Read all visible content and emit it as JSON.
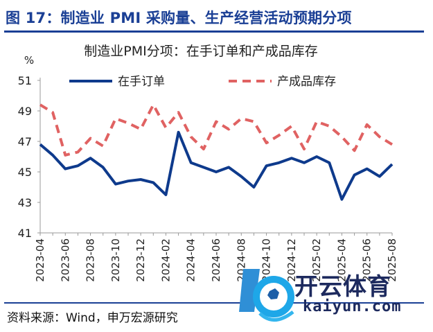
{
  "figure_title": "图 17：制造业 PMI 采购量、生产经营活动预期分项",
  "source_text": "资料来源：Wind，申万宏源研究",
  "watermark": {
    "cn": "开云体育",
    "en": "kaiyun.com"
  },
  "chart_data": {
    "type": "line",
    "title": "制造业PMI分项：在手订单和产成品库存",
    "unit_label": "%",
    "categories": [
      "2023-04",
      "2023-05",
      "2023-06",
      "2023-07",
      "2023-08",
      "2023-09",
      "2023-10",
      "2023-11",
      "2023-12",
      "2024-01",
      "2024-02",
      "2024-03",
      "2024-04",
      "2024-05",
      "2024-06",
      "2024-07",
      "2024-08",
      "2024-09",
      "2024-10",
      "2024-11",
      "2024-12",
      "2025-01",
      "2025-02",
      "2025-03",
      "2025-04",
      "2025-05",
      "2025-06",
      "2025-07",
      "2025-08"
    ],
    "tick_labels": [
      "2023-04",
      "2023-06",
      "2023-08",
      "2023-10",
      "2023-12",
      "2024-02",
      "2024-04",
      "2024-06",
      "2024-08",
      "2024-10",
      "2024-12",
      "2025-02",
      "2025-04",
      "2025-06",
      "2025-08"
    ],
    "ylim": [
      41,
      51
    ],
    "yticks": [
      41,
      43,
      45,
      47,
      49,
      51
    ],
    "grid": false,
    "legend_position": "top",
    "series": [
      {
        "name": "在手订单",
        "color": "#0e3a8c",
        "style": "solid",
        "values": [
          46.8,
          46.1,
          45.2,
          45.4,
          45.9,
          45.3,
          44.2,
          44.4,
          44.5,
          44.3,
          43.5,
          47.6,
          45.6,
          45.3,
          45.0,
          45.3,
          44.7,
          44.0,
          45.4,
          45.6,
          45.9,
          45.6,
          46.0,
          45.6,
          43.2,
          44.8,
          45.2,
          44.7,
          45.5
        ]
      },
      {
        "name": "产成品库存",
        "color": "#e06262",
        "style": "dashed",
        "values": [
          49.4,
          48.9,
          46.1,
          46.3,
          47.2,
          46.7,
          48.5,
          48.2,
          47.8,
          49.4,
          47.9,
          48.9,
          47.3,
          46.5,
          48.3,
          47.8,
          48.5,
          48.3,
          46.9,
          47.4,
          48.0,
          46.5,
          48.3,
          48.0,
          47.3,
          46.4,
          48.1,
          47.3,
          46.8
        ]
      }
    ]
  }
}
